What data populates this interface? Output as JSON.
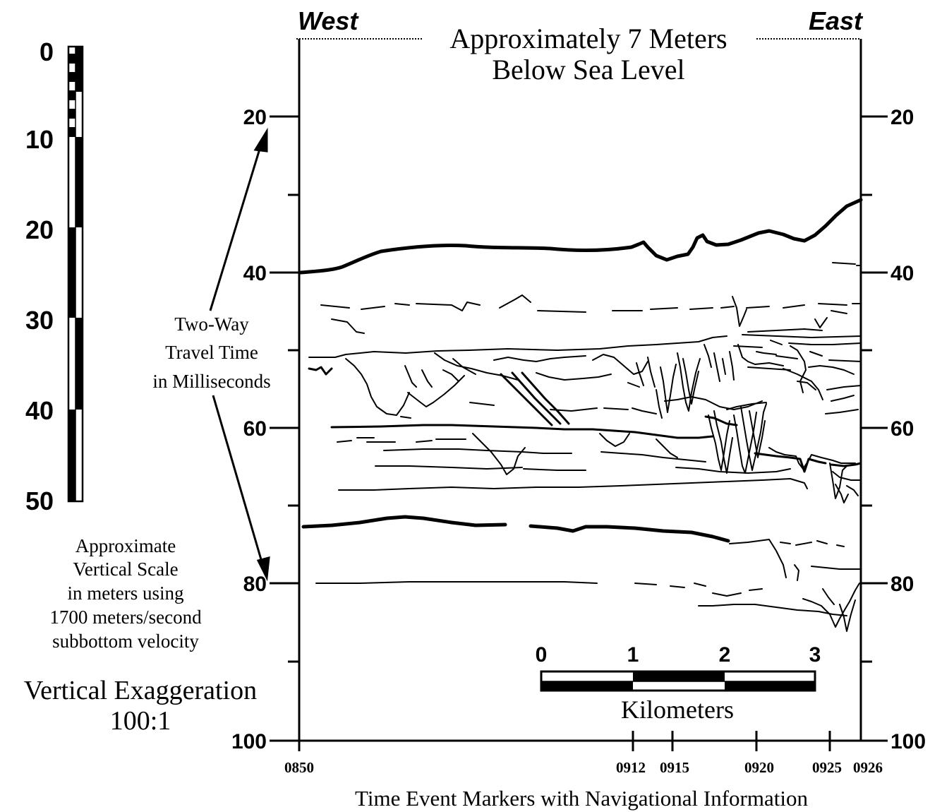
{
  "header": {
    "west": "West",
    "east": "East",
    "title_line1": "Approximately 7 Meters",
    "title_line2": "Below Sea Level"
  },
  "meter_scale": {
    "ticks": [
      "0",
      "10",
      "20",
      "30",
      "40",
      "50"
    ],
    "caption": [
      "Approximate",
      "Vertical Scale",
      "in meters using",
      "1700 meters/second",
      "subbottom velocity"
    ]
  },
  "exaggeration": {
    "line1": "Vertical Exaggeration",
    "line2": "100:1"
  },
  "travel_time": {
    "ticks": [
      "20",
      "40",
      "60",
      "80",
      "100"
    ],
    "label": [
      "Two-Way",
      "Travel Time",
      "in Milliseconds"
    ]
  },
  "time_markers": {
    "labels": [
      "0850",
      "0912",
      "0915",
      "0920",
      "0925",
      "0926"
    ],
    "caption": "Time Event Markers with Navigational Information"
  },
  "km_scale": {
    "ticks": [
      "0",
      "1",
      "2",
      "3"
    ],
    "unit": "Kilometers"
  },
  "colors": {
    "ink": "#000000",
    "paper": "#ffffff"
  }
}
